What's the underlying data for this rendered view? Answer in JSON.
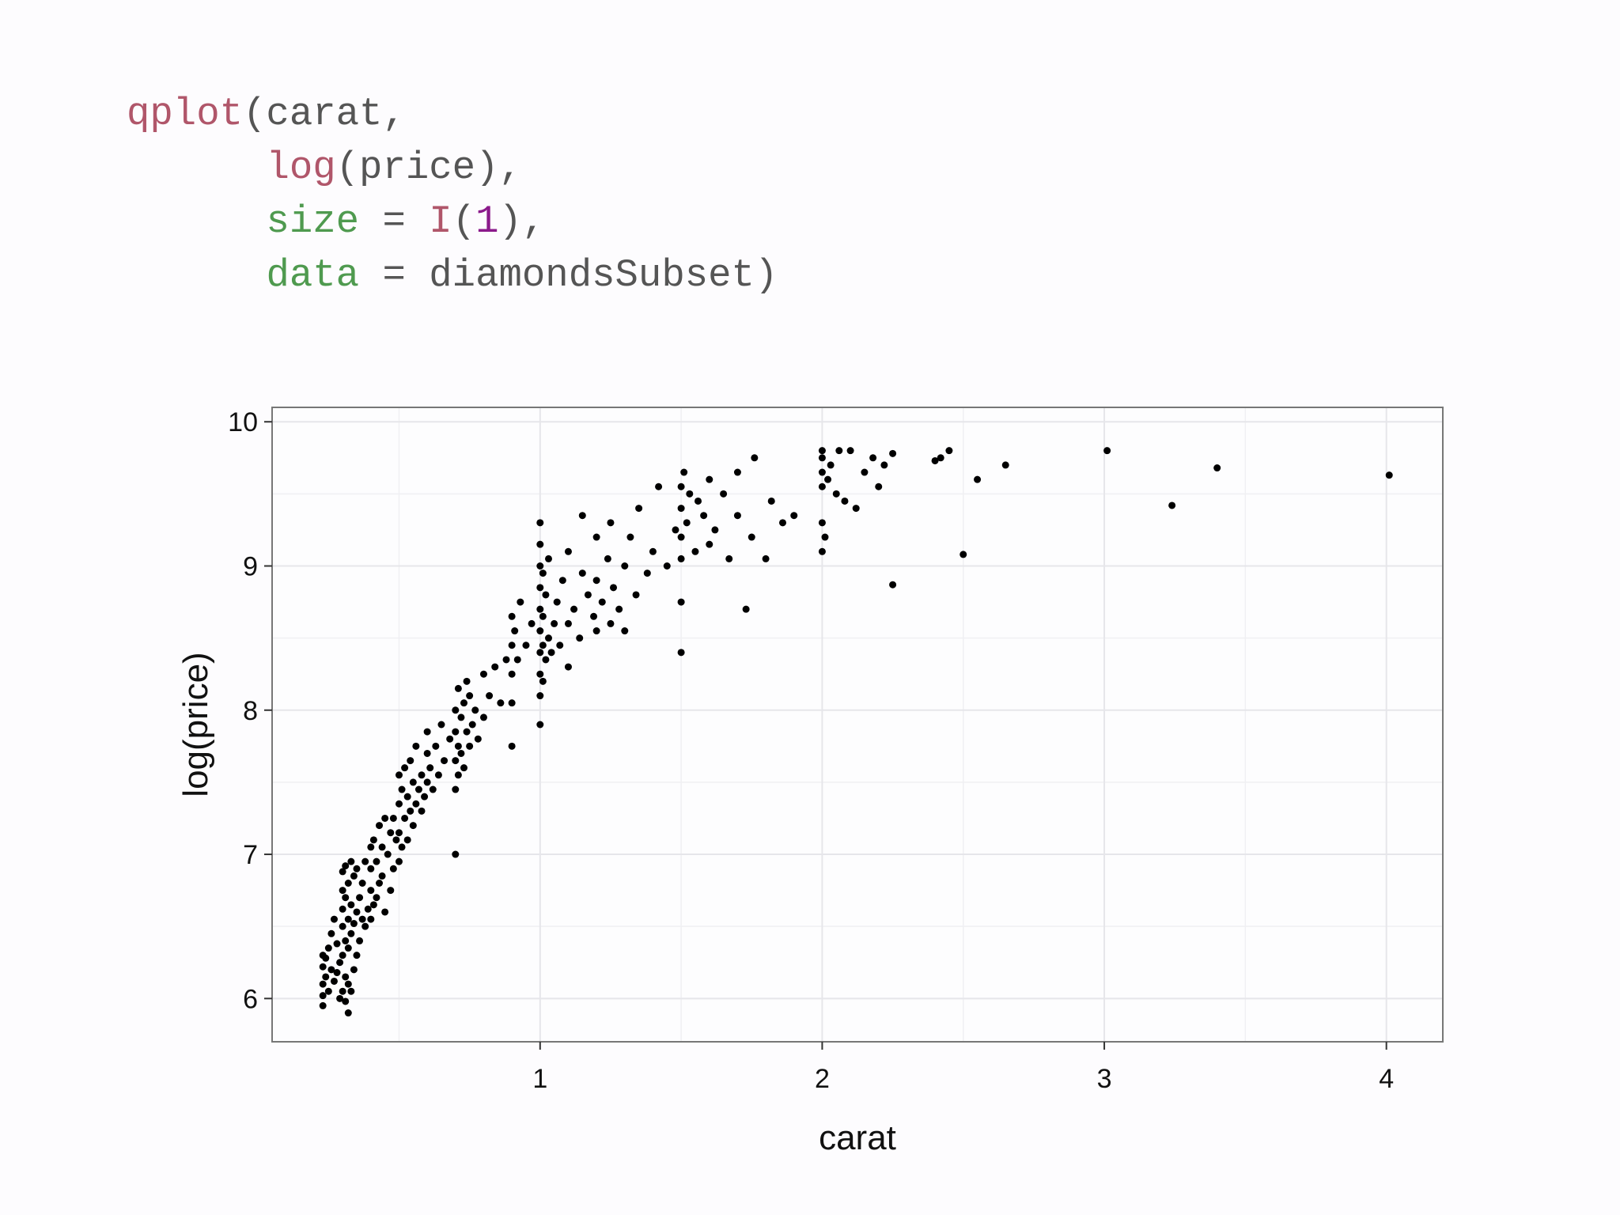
{
  "code": {
    "lines": [
      [
        {
          "t": "qplot",
          "c": "fn"
        },
        {
          "t": "(carat,",
          "c": "plain"
        }
      ],
      [
        {
          "t": "      ",
          "c": "plain"
        },
        {
          "t": "log",
          "c": "fn"
        },
        {
          "t": "(price),",
          "c": "plain"
        }
      ],
      [
        {
          "t": "      ",
          "c": "plain"
        },
        {
          "t": "size",
          "c": "arg"
        },
        {
          "t": " = ",
          "c": "plain"
        },
        {
          "t": "I",
          "c": "fn"
        },
        {
          "t": "(",
          "c": "plain"
        },
        {
          "t": "1",
          "c": "num"
        },
        {
          "t": "),",
          "c": "plain"
        }
      ],
      [
        {
          "t": "      ",
          "c": "plain"
        },
        {
          "t": "data",
          "c": "arg"
        },
        {
          "t": " = diamondsSubset)",
          "c": "plain"
        }
      ]
    ]
  },
  "chart_data": {
    "type": "scatter",
    "title": "",
    "xlabel": "carat",
    "ylabel": "log(price)",
    "xlim": [
      0.05,
      4.2
    ],
    "ylim": [
      5.7,
      10.1
    ],
    "xticks": [
      1,
      2,
      3,
      4
    ],
    "yticks": [
      6,
      7,
      8,
      9,
      10
    ],
    "grid": true,
    "point_color": "#000000",
    "panel_border_color": "#777777",
    "grid_color": "#e6e6ea",
    "points": [
      [
        0.23,
        5.95
      ],
      [
        0.23,
        6.02
      ],
      [
        0.23,
        6.1
      ],
      [
        0.23,
        6.22
      ],
      [
        0.23,
        6.3
      ],
      [
        0.24,
        6.15
      ],
      [
        0.24,
        6.28
      ],
      [
        0.25,
        6.35
      ],
      [
        0.25,
        6.05
      ],
      [
        0.26,
        6.2
      ],
      [
        0.26,
        6.45
      ],
      [
        0.27,
        6.12
      ],
      [
        0.27,
        6.55
      ],
      [
        0.28,
        6.18
      ],
      [
        0.28,
        6.38
      ],
      [
        0.29,
        6.0
      ],
      [
        0.29,
        6.25
      ],
      [
        0.3,
        6.05
      ],
      [
        0.3,
        6.3
      ],
      [
        0.3,
        6.5
      ],
      [
        0.3,
        6.62
      ],
      [
        0.3,
        6.75
      ],
      [
        0.3,
        6.88
      ],
      [
        0.31,
        5.98
      ],
      [
        0.31,
        6.15
      ],
      [
        0.31,
        6.4
      ],
      [
        0.31,
        6.7
      ],
      [
        0.31,
        6.92
      ],
      [
        0.32,
        5.9
      ],
      [
        0.32,
        6.1
      ],
      [
        0.32,
        6.35
      ],
      [
        0.32,
        6.55
      ],
      [
        0.32,
        6.8
      ],
      [
        0.33,
        6.05
      ],
      [
        0.33,
        6.45
      ],
      [
        0.33,
        6.65
      ],
      [
        0.33,
        6.95
      ],
      [
        0.34,
        6.2
      ],
      [
        0.34,
        6.52
      ],
      [
        0.34,
        6.85
      ],
      [
        0.35,
        6.3
      ],
      [
        0.35,
        6.6
      ],
      [
        0.35,
        6.9
      ],
      [
        0.36,
        6.4
      ],
      [
        0.36,
        6.7
      ],
      [
        0.37,
        6.55
      ],
      [
        0.37,
        6.8
      ],
      [
        0.38,
        6.5
      ],
      [
        0.38,
        6.95
      ],
      [
        0.39,
        6.62
      ],
      [
        0.4,
        6.55
      ],
      [
        0.4,
        6.75
      ],
      [
        0.4,
        6.9
      ],
      [
        0.4,
        7.05
      ],
      [
        0.41,
        6.65
      ],
      [
        0.41,
        7.1
      ],
      [
        0.42,
        6.7
      ],
      [
        0.42,
        6.95
      ],
      [
        0.43,
        6.8
      ],
      [
        0.43,
        7.2
      ],
      [
        0.44,
        6.85
      ],
      [
        0.44,
        7.05
      ],
      [
        0.45,
        6.6
      ],
      [
        0.45,
        7.25
      ],
      [
        0.46,
        7.0
      ],
      [
        0.47,
        6.75
      ],
      [
        0.47,
        7.15
      ],
      [
        0.48,
        6.9
      ],
      [
        0.48,
        7.25
      ],
      [
        0.49,
        7.1
      ],
      [
        0.5,
        6.95
      ],
      [
        0.5,
        7.15
      ],
      [
        0.5,
        7.35
      ],
      [
        0.5,
        7.55
      ],
      [
        0.51,
        7.05
      ],
      [
        0.51,
        7.45
      ],
      [
        0.52,
        7.25
      ],
      [
        0.52,
        7.6
      ],
      [
        0.53,
        7.1
      ],
      [
        0.53,
        7.4
      ],
      [
        0.54,
        7.3
      ],
      [
        0.54,
        7.65
      ],
      [
        0.55,
        7.2
      ],
      [
        0.55,
        7.5
      ],
      [
        0.56,
        7.35
      ],
      [
        0.56,
        7.75
      ],
      [
        0.57,
        7.45
      ],
      [
        0.58,
        7.3
      ],
      [
        0.58,
        7.55
      ],
      [
        0.59,
        7.4
      ],
      [
        0.6,
        7.5
      ],
      [
        0.6,
        7.7
      ],
      [
        0.6,
        7.85
      ],
      [
        0.61,
        7.6
      ],
      [
        0.62,
        7.45
      ],
      [
        0.63,
        7.75
      ],
      [
        0.64,
        7.55
      ],
      [
        0.65,
        7.9
      ],
      [
        0.66,
        7.65
      ],
      [
        0.68,
        7.8
      ],
      [
        0.7,
        7.0
      ],
      [
        0.7,
        7.45
      ],
      [
        0.7,
        7.65
      ],
      [
        0.7,
        7.85
      ],
      [
        0.7,
        8.0
      ],
      [
        0.71,
        7.55
      ],
      [
        0.71,
        7.75
      ],
      [
        0.71,
        8.15
      ],
      [
        0.72,
        7.7
      ],
      [
        0.72,
        7.95
      ],
      [
        0.73,
        8.05
      ],
      [
        0.73,
        7.6
      ],
      [
        0.74,
        7.85
      ],
      [
        0.74,
        8.2
      ],
      [
        0.75,
        7.75
      ],
      [
        0.75,
        8.1
      ],
      [
        0.76,
        7.9
      ],
      [
        0.77,
        8.0
      ],
      [
        0.78,
        7.8
      ],
      [
        0.8,
        7.95
      ],
      [
        0.8,
        8.25
      ],
      [
        0.82,
        8.1
      ],
      [
        0.84,
        8.3
      ],
      [
        0.86,
        8.05
      ],
      [
        0.88,
        8.35
      ],
      [
        0.9,
        7.75
      ],
      [
        0.9,
        8.05
      ],
      [
        0.9,
        8.25
      ],
      [
        0.9,
        8.45
      ],
      [
        0.9,
        8.65
      ],
      [
        0.91,
        8.55
      ],
      [
        0.92,
        8.35
      ],
      [
        0.93,
        8.75
      ],
      [
        0.95,
        8.45
      ],
      [
        0.97,
        8.6
      ],
      [
        1.0,
        7.9
      ],
      [
        1.0,
        8.1
      ],
      [
        1.0,
        8.25
      ],
      [
        1.0,
        8.4
      ],
      [
        1.0,
        8.55
      ],
      [
        1.0,
        8.7
      ],
      [
        1.0,
        8.85
      ],
      [
        1.0,
        9.0
      ],
      [
        1.0,
        9.15
      ],
      [
        1.0,
        9.3
      ],
      [
        1.01,
        8.2
      ],
      [
        1.01,
        8.45
      ],
      [
        1.01,
        8.65
      ],
      [
        1.01,
        8.95
      ],
      [
        1.02,
        8.35
      ],
      [
        1.02,
        8.8
      ],
      [
        1.03,
        8.5
      ],
      [
        1.03,
        9.05
      ],
      [
        1.04,
        8.4
      ],
      [
        1.05,
        8.6
      ],
      [
        1.06,
        8.75
      ],
      [
        1.07,
        8.45
      ],
      [
        1.08,
        8.9
      ],
      [
        1.1,
        8.3
      ],
      [
        1.1,
        8.6
      ],
      [
        1.1,
        9.1
      ],
      [
        1.12,
        8.7
      ],
      [
        1.14,
        8.5
      ],
      [
        1.15,
        8.95
      ],
      [
        1.15,
        9.35
      ],
      [
        1.17,
        8.8
      ],
      [
        1.19,
        8.65
      ],
      [
        1.2,
        8.55
      ],
      [
        1.2,
        8.9
      ],
      [
        1.2,
        9.2
      ],
      [
        1.22,
        8.75
      ],
      [
        1.24,
        9.05
      ],
      [
        1.25,
        8.6
      ],
      [
        1.25,
        9.3
      ],
      [
        1.26,
        8.85
      ],
      [
        1.28,
        8.7
      ],
      [
        1.3,
        9.0
      ],
      [
        1.3,
        8.55
      ],
      [
        1.32,
        9.2
      ],
      [
        1.34,
        8.8
      ],
      [
        1.35,
        9.4
      ],
      [
        1.38,
        8.95
      ],
      [
        1.4,
        9.1
      ],
      [
        1.42,
        9.55
      ],
      [
        1.45,
        9.0
      ],
      [
        1.48,
        9.25
      ],
      [
        1.5,
        8.4
      ],
      [
        1.5,
        8.75
      ],
      [
        1.5,
        9.05
      ],
      [
        1.5,
        9.2
      ],
      [
        1.5,
        9.4
      ],
      [
        1.5,
        9.55
      ],
      [
        1.51,
        9.65
      ],
      [
        1.52,
        9.3
      ],
      [
        1.53,
        9.5
      ],
      [
        1.55,
        9.1
      ],
      [
        1.56,
        9.45
      ],
      [
        1.58,
        9.35
      ],
      [
        1.6,
        9.15
      ],
      [
        1.6,
        9.6
      ],
      [
        1.62,
        9.25
      ],
      [
        1.65,
        9.5
      ],
      [
        1.67,
        9.05
      ],
      [
        1.7,
        9.35
      ],
      [
        1.7,
        9.65
      ],
      [
        1.73,
        8.7
      ],
      [
        1.75,
        9.2
      ],
      [
        1.76,
        9.75
      ],
      [
        1.8,
        9.05
      ],
      [
        1.82,
        9.45
      ],
      [
        1.86,
        9.3
      ],
      [
        1.9,
        9.35
      ],
      [
        2.0,
        9.1
      ],
      [
        2.0,
        9.3
      ],
      [
        2.0,
        9.55
      ],
      [
        2.0,
        9.65
      ],
      [
        2.0,
        9.75
      ],
      [
        2.0,
        9.8
      ],
      [
        2.01,
        9.2
      ],
      [
        2.02,
        9.6
      ],
      [
        2.03,
        9.7
      ],
      [
        2.05,
        9.5
      ],
      [
        2.06,
        9.8
      ],
      [
        2.08,
        9.45
      ],
      [
        2.1,
        9.8
      ],
      [
        2.12,
        9.4
      ],
      [
        2.15,
        9.65
      ],
      [
        2.18,
        9.75
      ],
      [
        2.2,
        9.55
      ],
      [
        2.22,
        9.7
      ],
      [
        2.25,
        8.87
      ],
      [
        2.25,
        9.78
      ],
      [
        2.4,
        9.73
      ],
      [
        2.42,
        9.75
      ],
      [
        2.45,
        9.8
      ],
      [
        2.5,
        9.08
      ],
      [
        2.55,
        9.6
      ],
      [
        2.65,
        9.7
      ],
      [
        3.01,
        9.8
      ],
      [
        3.24,
        9.42
      ],
      [
        3.4,
        9.68
      ],
      [
        4.01,
        9.63
      ]
    ]
  }
}
